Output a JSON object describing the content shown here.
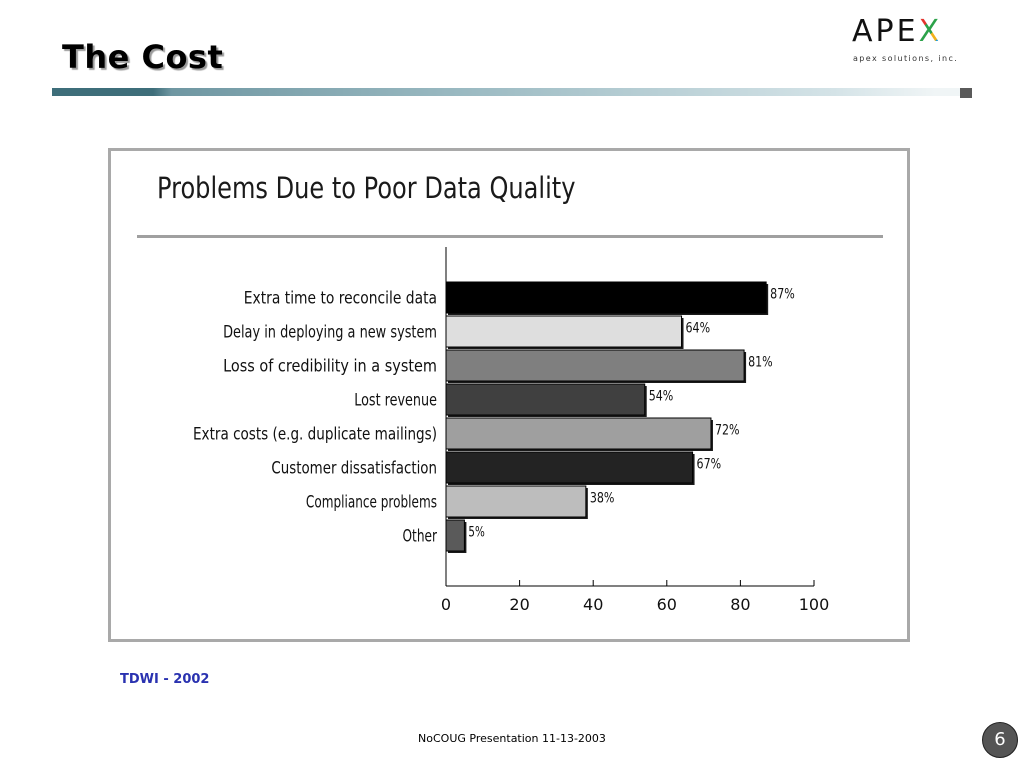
{
  "slide": {
    "title": "The Cost",
    "source": "TDWI - 2002",
    "footer": "NoCOUG Presentation 11-13-2003",
    "page_number": "6"
  },
  "logo": {
    "letters": [
      "A",
      "P",
      "E",
      "X"
    ],
    "colors": [
      "#111111",
      "#111111",
      "#111111",
      "#2aa3b8"
    ],
    "x_accent_colors": [
      "#e4332d",
      "#2ca24a",
      "#f2b21b",
      "#1f9bd6"
    ],
    "tagline": "apex solutions, inc."
  },
  "colors": {
    "title_rule_dark": "#3e6e7a",
    "source_text": "#2a32b0"
  },
  "chart_data": {
    "type": "bar",
    "orientation": "horizontal",
    "title": "Problems Due to Poor Data Quality",
    "categories": [
      "Extra time to reconcile data",
      "Delay in deploying a new system",
      "Loss of credibility in a system",
      "Lost revenue",
      "Extra costs (e.g. duplicate mailings)",
      "Customer dissatisfaction",
      "Compliance problems",
      "Other"
    ],
    "values": [
      87,
      64,
      81,
      54,
      72,
      67,
      38,
      5
    ],
    "value_labels": [
      "87%",
      "64%",
      "81%",
      "54%",
      "72%",
      "67%",
      "38%",
      "5%"
    ],
    "bar_colors": [
      "#000000",
      "#dedede",
      "#7f7f7f",
      "#404040",
      "#9f9f9f",
      "#232323",
      "#bdbdbd",
      "#5a5a5a"
    ],
    "xlim": [
      0,
      100
    ],
    "xticks": [
      0,
      20,
      40,
      60,
      80,
      100
    ],
    "grid": false,
    "legend": "none"
  }
}
